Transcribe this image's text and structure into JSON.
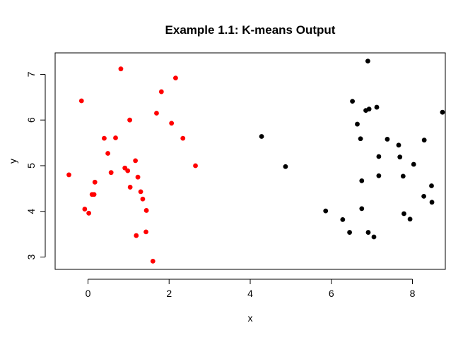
{
  "chart_data": {
    "type": "scatter",
    "title": "Example 1.1: K-means Output",
    "xlabel": "x",
    "ylabel": "y",
    "xlim": [
      -0.81,
      8.81
    ],
    "ylim": [
      2.73,
      7.47
    ],
    "xticks": [
      0,
      2,
      4,
      6,
      8
    ],
    "yticks": [
      3,
      4,
      5,
      6,
      7
    ],
    "xtick_labels": [
      "0",
      "2",
      "4",
      "6",
      "8"
    ],
    "ytick_labels": [
      "3",
      "4",
      "5",
      "6",
      "7"
    ],
    "grid": false,
    "legend": "none",
    "series": [
      {
        "color": "#ff0000",
        "points": [
          [
            -0.47,
            4.8
          ],
          [
            -0.16,
            6.42
          ],
          [
            -0.08,
            4.05
          ],
          [
            0.02,
            3.96
          ],
          [
            0.1,
            4.37
          ],
          [
            0.15,
            4.37
          ],
          [
            0.17,
            4.64
          ],
          [
            0.4,
            5.6
          ],
          [
            0.49,
            5.27
          ],
          [
            0.57,
            4.85
          ],
          [
            0.68,
            5.61
          ],
          [
            0.81,
            7.12
          ],
          [
            0.91,
            4.95
          ],
          [
            0.98,
            4.89
          ],
          [
            1.03,
            6.0
          ],
          [
            1.04,
            4.53
          ],
          [
            1.17,
            5.11
          ],
          [
            1.19,
            3.47
          ],
          [
            1.23,
            4.75
          ],
          [
            1.3,
            4.43
          ],
          [
            1.35,
            4.27
          ],
          [
            1.43,
            3.55
          ],
          [
            1.44,
            4.02
          ],
          [
            1.6,
            2.91
          ],
          [
            1.69,
            6.15
          ],
          [
            1.81,
            6.62
          ],
          [
            2.06,
            5.93
          ],
          [
            2.16,
            6.92
          ],
          [
            2.34,
            5.6
          ],
          [
            2.65,
            5.0
          ]
        ]
      },
      {
        "color": "#000000",
        "points": [
          [
            4.28,
            5.64
          ],
          [
            4.87,
            4.98
          ],
          [
            5.86,
            4.01
          ],
          [
            6.28,
            3.82
          ],
          [
            6.45,
            3.54
          ],
          [
            6.52,
            6.41
          ],
          [
            6.64,
            5.91
          ],
          [
            6.72,
            5.59
          ],
          [
            6.75,
            4.06
          ],
          [
            6.75,
            4.67
          ],
          [
            6.85,
            6.21
          ],
          [
            6.9,
            7.29
          ],
          [
            6.91,
            3.54
          ],
          [
            6.93,
            6.24
          ],
          [
            7.05,
            3.44
          ],
          [
            7.12,
            6.28
          ],
          [
            7.17,
            5.2
          ],
          [
            7.17,
            4.78
          ],
          [
            7.38,
            5.58
          ],
          [
            7.66,
            5.45
          ],
          [
            7.69,
            5.19
          ],
          [
            7.77,
            4.77
          ],
          [
            7.79,
            3.95
          ],
          [
            7.94,
            3.83
          ],
          [
            8.03,
            5.03
          ],
          [
            8.28,
            4.33
          ],
          [
            8.29,
            5.56
          ],
          [
            8.47,
            4.56
          ],
          [
            8.48,
            4.2
          ],
          [
            8.74,
            6.17
          ]
        ]
      }
    ]
  }
}
